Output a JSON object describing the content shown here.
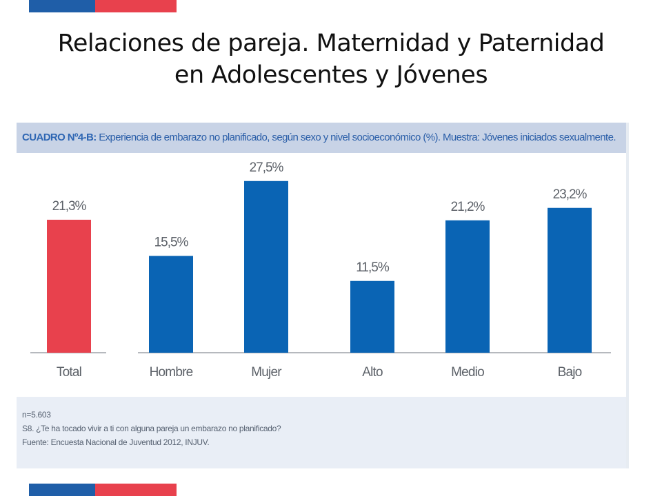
{
  "slide": {
    "title_line1": "Relaciones de pareja. Maternidad y Paternidad",
    "title_line2": "en Adolescentes y Jóvenes"
  },
  "colors": {
    "brand_blue": "#1f5ea8",
    "brand_red": "#e8414d",
    "bar_total": "#e8414d",
    "bar_group": "#0a64b4",
    "header_bg": "#c8d3e6",
    "header_text": "#2e66b3",
    "notes_bg": "#e9eef6"
  },
  "panel": {
    "header_bold": "CUADRO Nº4-B:",
    "header_text": " Experiencia de embarazo no planificado, según sexo y nivel socioeconómico (%). Muestra: Jóvenes iniciados sexualmente.",
    "notes": [
      "n=5.603",
      "S8. ¿Te ha tocado vivir a ti con alguna pareja un embarazo no planificado?",
      "Fuente:  Encuesta Nacional de Juventud 2012, INJUV."
    ]
  },
  "chart_data": {
    "type": "bar",
    "title": "",
    "xlabel": "",
    "ylabel": "",
    "ylim": [
      0,
      32
    ],
    "grid": false,
    "categories": [
      "Total",
      "Hombre",
      "Mujer",
      "Alto",
      "Medio",
      "Bajo"
    ],
    "values": [
      21.3,
      15.5,
      27.5,
      11.5,
      21.2,
      23.2
    ],
    "data_labels": [
      "21,3%",
      "15,5%",
      "27,5%",
      "11,5%",
      "21,2%",
      "23,2%"
    ],
    "bar_colors": [
      "#e8414d",
      "#0a64b4",
      "#0a64b4",
      "#0a64b4",
      "#0a64b4",
      "#0a64b4"
    ]
  }
}
